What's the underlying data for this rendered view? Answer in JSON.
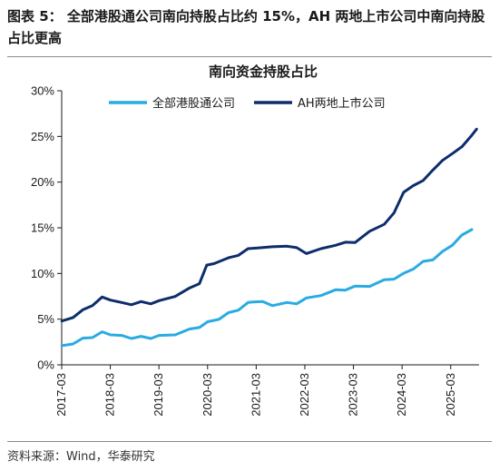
{
  "figure": {
    "title": "图表 5：  全部港股通公司南向持股占比约 15%，AH 两地上市公司中南向持股占比更高",
    "source": "资料来源：Wind，华泰研究"
  },
  "chart_data": {
    "type": "line",
    "title": "南向资金持股占比",
    "xlabel": "",
    "ylabel": "",
    "ylim": [
      0,
      30
    ],
    "y_ticks": [
      "0%",
      "5%",
      "10%",
      "15%",
      "20%",
      "25%",
      "30%"
    ],
    "y_tick_values": [
      0,
      5,
      10,
      15,
      20,
      25,
      30
    ],
    "x_ticks": [
      "2017-03",
      "2018-03",
      "2019-03",
      "2020-03",
      "2021-03",
      "2022-03",
      "2023-03",
      "2024-03",
      "2025-03"
    ],
    "x_tick_values": [
      2017.167,
      2018.167,
      2019.167,
      2020.167,
      2021.167,
      2022.167,
      2023.167,
      2024.167,
      2025.167
    ],
    "xlim": [
      2017.167,
      2025.75
    ],
    "grid": false,
    "legend_position": "top-left",
    "series": [
      {
        "name": "全部港股通公司",
        "color": "#29abe2",
        "x": [
          2017.17,
          2017.4,
          2017.6,
          2017.8,
          2018.0,
          2018.17,
          2018.4,
          2018.6,
          2018.8,
          2019.0,
          2019.17,
          2019.5,
          2019.8,
          2020.0,
          2020.17,
          2020.4,
          2020.6,
          2020.8,
          2021.0,
          2021.1,
          2021.3,
          2021.5,
          2021.8,
          2022.0,
          2022.2,
          2022.5,
          2022.8,
          2023.0,
          2023.2,
          2023.5,
          2023.8,
          2024.0,
          2024.2,
          2024.4,
          2024.6,
          2024.8,
          2025.0,
          2025.2,
          2025.4,
          2025.6
        ],
        "y": [
          2.1,
          2.4,
          2.8,
          3.1,
          3.5,
          3.4,
          3.1,
          3.0,
          3.0,
          3.0,
          3.1,
          3.4,
          3.8,
          4.2,
          4.6,
          5.1,
          5.6,
          6.1,
          6.7,
          7.0,
          6.8,
          6.6,
          6.7,
          6.8,
          7.2,
          7.7,
          8.1,
          8.3,
          8.5,
          8.7,
          9.2,
          9.5,
          9.9,
          10.6,
          11.2,
          11.6,
          12.3,
          13.2,
          14.1,
          14.8
        ]
      },
      {
        "name": "AH两地上市公司",
        "color": "#0d2d6b",
        "x": [
          2017.17,
          2017.4,
          2017.6,
          2017.8,
          2018.0,
          2018.17,
          2018.4,
          2018.6,
          2018.8,
          2019.0,
          2019.17,
          2019.5,
          2019.8,
          2020.0,
          2020.15,
          2020.3,
          2020.6,
          2020.8,
          2021.0,
          2021.2,
          2021.5,
          2021.8,
          2022.0,
          2022.2,
          2022.5,
          2022.8,
          2023.0,
          2023.2,
          2023.5,
          2023.8,
          2024.0,
          2024.2,
          2024.4,
          2024.6,
          2024.8,
          2025.0,
          2025.2,
          2025.4,
          2025.6,
          2025.7
        ],
        "y": [
          4.8,
          5.3,
          5.9,
          6.6,
          7.3,
          7.2,
          6.7,
          6.7,
          6.8,
          6.8,
          6.9,
          7.6,
          8.3,
          9.0,
          10.8,
          11.2,
          11.6,
          12.1,
          12.6,
          12.9,
          12.8,
          13.1,
          12.7,
          12.3,
          12.6,
          13.2,
          13.3,
          13.5,
          14.5,
          15.5,
          16.5,
          19.0,
          19.5,
          20.3,
          21.2,
          22.5,
          23.0,
          24.0,
          25.0,
          25.8
        ]
      }
    ]
  }
}
